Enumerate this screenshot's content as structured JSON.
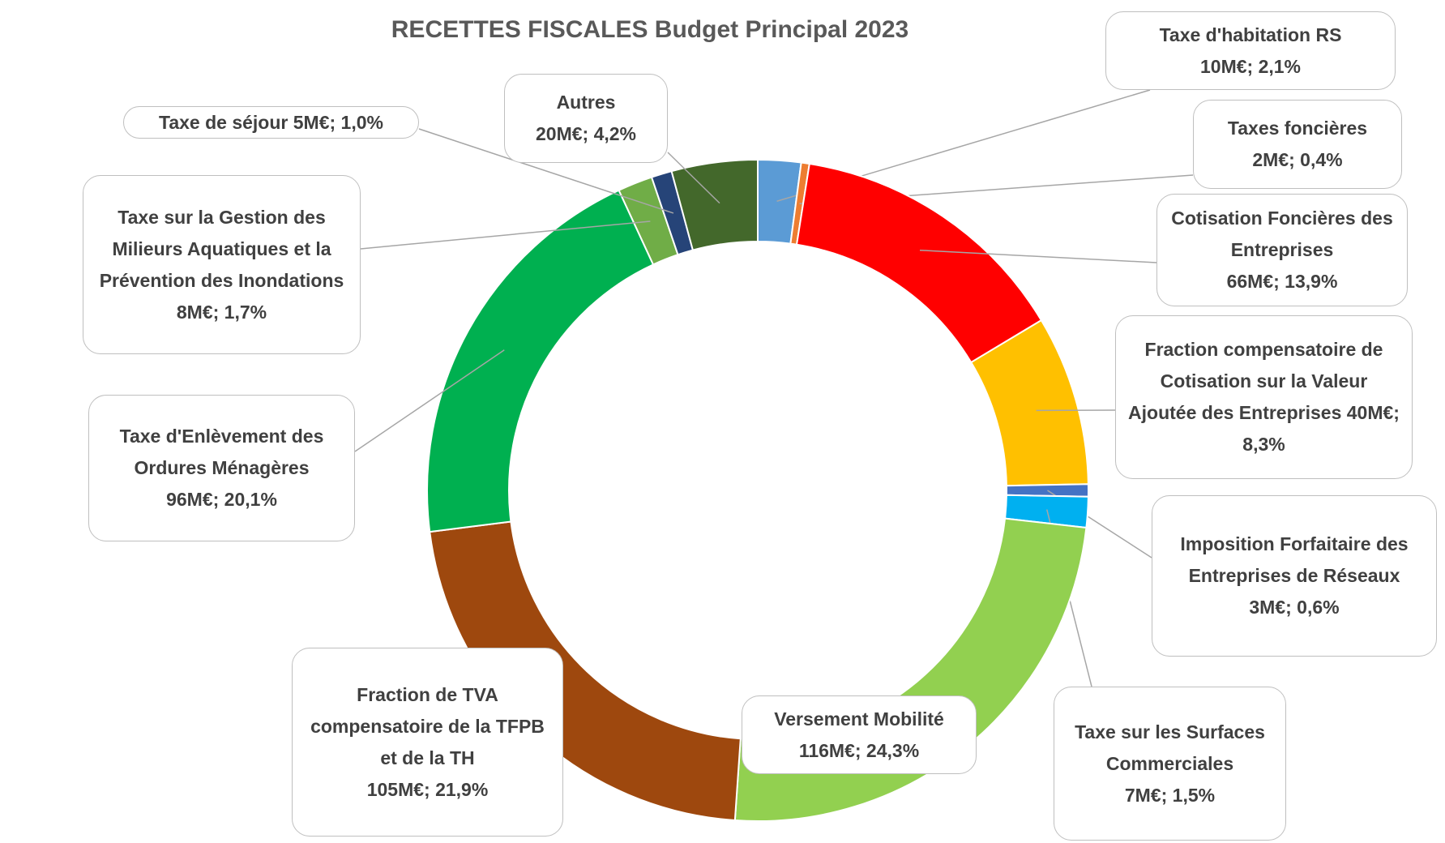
{
  "chart_data": {
    "type": "donut",
    "title": "RECETTES FISCALES Budget Principal 2023",
    "categories": [
      "Taxe d'habitation RS",
      "Taxes foncières",
      "Cotisation Foncières des Entreprises",
      "Fraction compensatoire de Cotisation sur la Valeur Ajoutée des Entreprises",
      "Imposition Forfaitaire des Entreprises de Réseaux",
      "Taxe sur les Surfaces Commerciales",
      "Versement Mobilité",
      "Fraction de TVA compensatoire de la TFPB et de la TH",
      "Taxe d'Enlèvement des Ordures Ménagères",
      "Taxe sur la Gestion des Milieurs Aquatiques et la Prévention des Inondations",
      "Taxe de séjour",
      "Autres"
    ],
    "values": [
      2.1,
      0.4,
      13.9,
      8.3,
      0.6,
      1.5,
      24.3,
      21.9,
      20.1,
      1.7,
      1.0,
      4.2
    ],
    "value_labels": [
      "10M€; 2,1%",
      "2M€; 0,4%",
      "66M€; 13,9%",
      "40M€; 8,3%",
      "3M€; 0,6%",
      "7M€; 1,5%",
      "116M€; 24,3%",
      "105M€; 21,9%",
      "96M€; 20,1%",
      "8M€; 1,7%",
      "5M€; 1,0%",
      "20M€; 4,2%"
    ],
    "colors": [
      "#5b9bd5",
      "#ed7d31",
      "#ff0000",
      "#ffc000",
      "#4472c4",
      "#00b0f0",
      "#92d050",
      "#9e480e",
      "#00b050",
      "#70ad47",
      "#264478",
      "#43682b"
    ]
  }
}
